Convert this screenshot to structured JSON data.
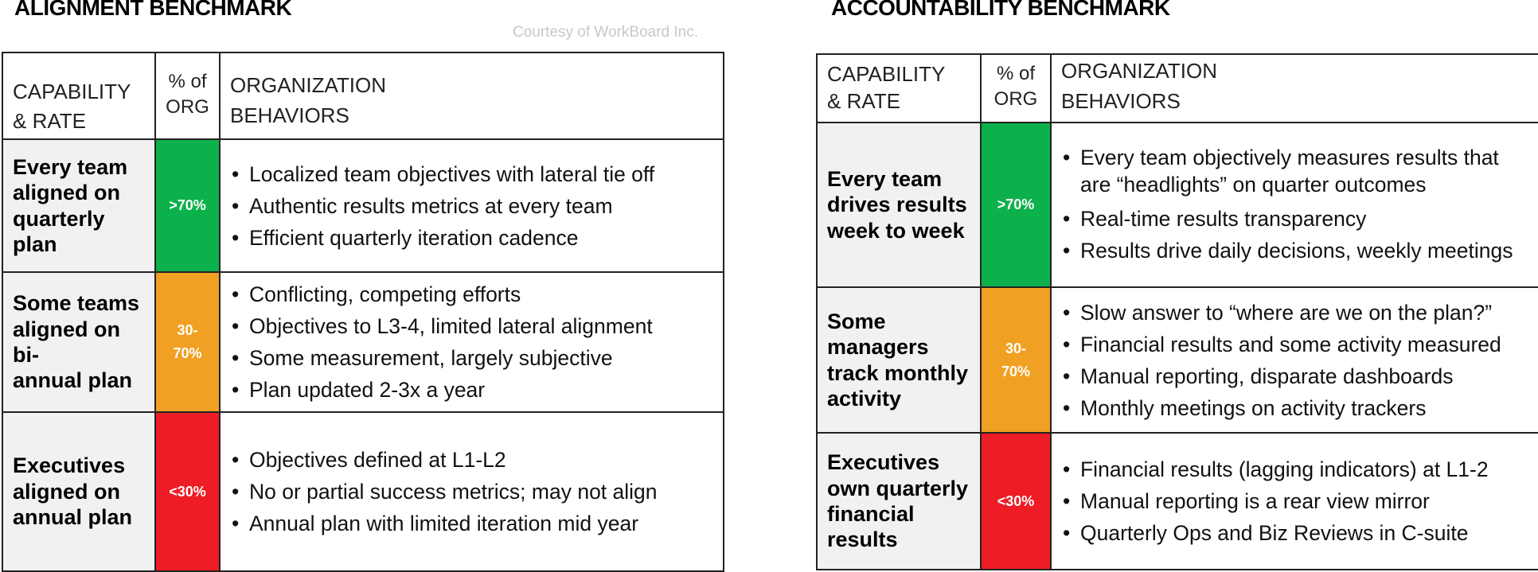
{
  "alignment": {
    "title": "ALIGNMENT BENCHMARK",
    "courtesy": "Courtesy of WorkBoard Inc.",
    "header": {
      "capability": [
        "CAPABILITY",
        "& RATE"
      ],
      "pct": [
        "% of",
        "ORG"
      ],
      "behaviors": [
        "ORGANIZATION",
        "BEHAVIORS"
      ]
    },
    "rows": [
      {
        "capability": [
          "Every team",
          "aligned on",
          "quarterly",
          "plan"
        ],
        "rate": [
          ">70%"
        ],
        "rate_color": "#0db14b",
        "behaviors": [
          "Localized team objectives with lateral tie off",
          "Authentic results metrics at every team",
          "Efficient quarterly iteration cadence"
        ]
      },
      {
        "capability": [
          "Some teams",
          "aligned on bi-",
          "annual plan"
        ],
        "rate": [
          "30-",
          "70%"
        ],
        "rate_color": "#f0a022",
        "behaviors": [
          "Conflicting, competing efforts",
          "Objectives to L3-4, limited lateral alignment",
          "Some measurement, largely subjective",
          "Plan updated 2-3x a year"
        ]
      },
      {
        "capability": [
          "Executives",
          "aligned on",
          "annual plan"
        ],
        "rate": [
          "<30%"
        ],
        "rate_color": "#ee1c25",
        "behaviors": [
          "Objectives defined at L1-L2",
          "No or partial success metrics; may not align",
          "Annual plan with limited iteration mid year"
        ]
      }
    ]
  },
  "accountability": {
    "title": "ACCOUNTABILITY BENCHMARK",
    "header": {
      "capability": [
        "CAPABILITY",
        "& RATE"
      ],
      "pct": [
        "% of",
        "ORG"
      ],
      "behaviors": [
        "ORGANIZATION",
        "BEHAVIORS"
      ]
    },
    "rows": [
      {
        "capability": [
          "Every team",
          "drives results",
          "week to week"
        ],
        "rate": [
          ">70%"
        ],
        "rate_color": "#0db14b",
        "behaviors": [
          [
            "Every team objectively measures results that",
            "are “headlights” on quarter outcomes"
          ],
          "Real-time results transparency",
          "Results drive daily decisions, weekly meetings"
        ]
      },
      {
        "capability": [
          "Some",
          "managers",
          "track monthly",
          "activity"
        ],
        "rate": [
          "30-",
          "70%"
        ],
        "rate_color": "#f0a022",
        "behaviors": [
          "Slow answer to “where are we on the plan?”",
          "Financial results and some activity measured",
          "Manual reporting, disparate dashboards",
          "Monthly meetings on activity trackers"
        ]
      },
      {
        "capability": [
          "Executives",
          "own quarterly",
          "financial",
          "results"
        ],
        "rate": [
          "<30%"
        ],
        "rate_color": "#ee1c25",
        "behaviors": [
          "Financial results (lagging indicators) at L1-2",
          "Manual reporting is a rear view mirror",
          "Quarterly Ops and Biz Reviews in C-suite"
        ]
      }
    ]
  }
}
